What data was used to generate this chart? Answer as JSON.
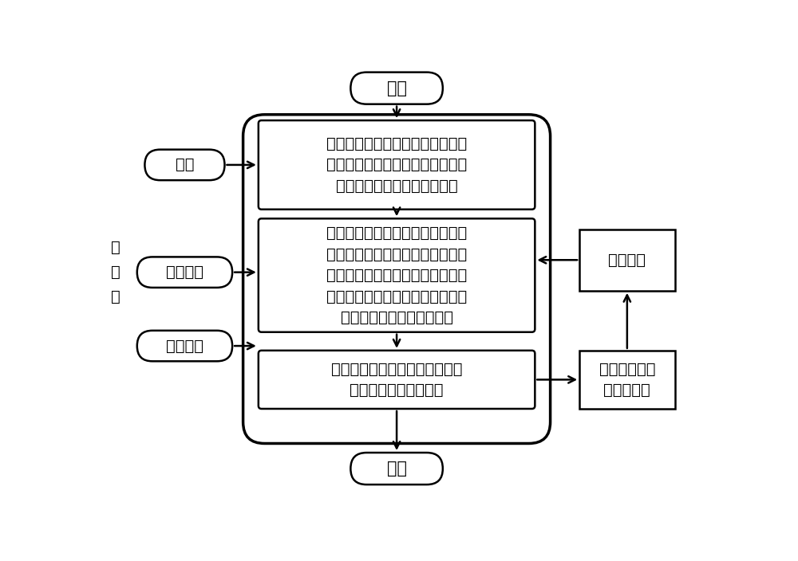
{
  "bg_color": "#ffffff",
  "line_color": "#000000",
  "text_color": "#000000",
  "font_size": 14,
  "start_text": "开始",
  "end_text": "结束",
  "box1_text": "初始化，设置相关参数，包括发动\n机燃油消耗、电机效率特性数据、\n外特性数据等，确定约束条件",
  "box2_text": "可行域内离散发动机转矩，划分网\n格，并求解相应的电机转矩，计算\n相应的发动机燃油消耗，计算离散\n点对应的发动机、电机功率，进而\n获得相应的等效燃油消耗量",
  "box3_text": "求解最小等效燃油消耗量对应的\n优化发动机、电机转矩",
  "vehicle_text": "整车模型",
  "opt_text": "优化的电机、\n发动机转矩",
  "speed_text": "转速",
  "torque_text": "需求转矩",
  "equiv_text": "等效因子",
  "input_label": "输\n入\n量",
  "lw": 1.8,
  "lw_outer": 2.5
}
